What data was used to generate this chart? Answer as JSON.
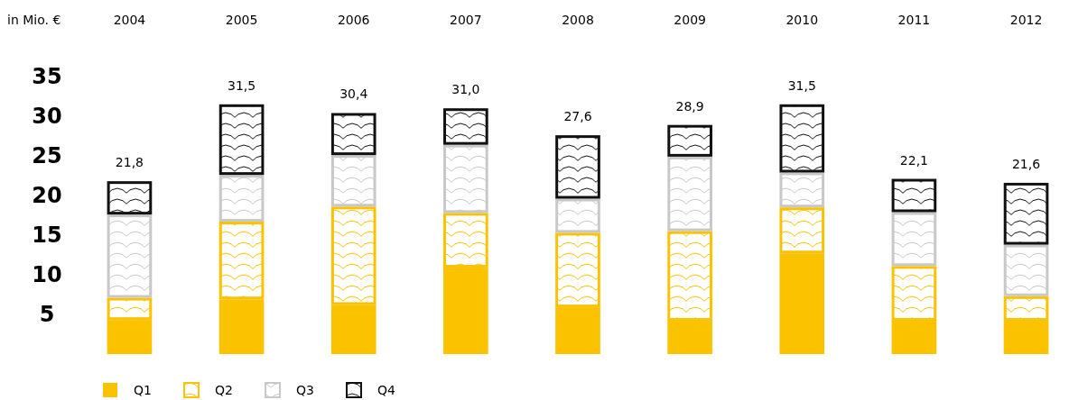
{
  "chart_data": {
    "type": "bar",
    "stacked": true,
    "ylabel": "in Mio. €",
    "categories": [
      "2004",
      "2005",
      "2006",
      "2007",
      "2008",
      "2009",
      "2010",
      "2011",
      "2012"
    ],
    "series": [
      {
        "name": "Q1",
        "color": "#fbc200",
        "values": [
          4.3,
          6.9,
          6.2,
          10.9,
          5.9,
          4.2,
          12.7,
          4.2,
          4.2
        ]
      },
      {
        "name": "Q2",
        "color": "#fbc200",
        "values": [
          2.8,
          9.8,
          12.4,
          6.9,
          9.4,
          11.3,
          5.8,
          6.9,
          3.1
        ]
      },
      {
        "name": "Q3",
        "color": "#c8c8c8",
        "values": [
          10.5,
          5.9,
          6.5,
          8.6,
          4.3,
          9.4,
          4.4,
          6.8,
          6.5
        ]
      },
      {
        "name": "Q4",
        "color": "#111111",
        "values": [
          4.2,
          8.9,
          5.3,
          4.6,
          8.0,
          4.0,
          8.6,
          4.2,
          7.8
        ]
      }
    ],
    "totals": [
      "21,8",
      "31,5",
      "30,4",
      "31,0",
      "27,6",
      "28,9",
      "31,5",
      "22,1",
      "21,6"
    ],
    "ylim": [
      0,
      35
    ],
    "yticks": [
      5,
      10,
      15,
      20,
      25,
      30,
      35
    ],
    "grid": false,
    "legend": "bottom left"
  }
}
